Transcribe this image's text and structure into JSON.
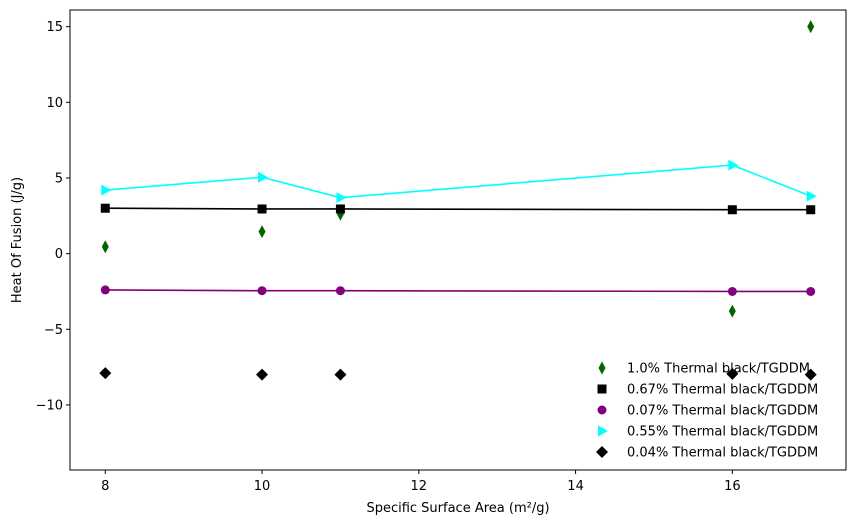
{
  "chart_data": {
    "type": "scatter",
    "title": "",
    "xlabel": "Specific Surface Area (m²/g)",
    "ylabel": "Heat Of Fusion (J/g)",
    "xlim": [
      7.55,
      17.45
    ],
    "ylim": [
      -14.3,
      16.1
    ],
    "xticks": [
      8,
      10,
      12,
      14,
      16
    ],
    "yticks": [
      -10,
      -5,
      0,
      5,
      10,
      15
    ],
    "grid": false,
    "legend_position": "lower-right",
    "series": [
      {
        "name": "1.0% Thermal black/TGDDM",
        "color": "#006400",
        "marker": "thin-diamond",
        "line": false,
        "x": [
          8,
          10,
          11,
          16,
          17
        ],
        "y": [
          0.45,
          1.45,
          2.6,
          -3.8,
          15.0
        ]
      },
      {
        "name": "0.67% Thermal black/TGDDM",
        "color": "#000000",
        "marker": "square",
        "line": true,
        "x": [
          8,
          10,
          11,
          16,
          17
        ],
        "y": [
          3.0,
          2.95,
          2.95,
          2.9,
          2.9
        ]
      },
      {
        "name": "0.07% Thermal black/TGDDM",
        "color": "#800080",
        "marker": "circle",
        "line": true,
        "x": [
          8,
          10,
          11,
          16,
          17
        ],
        "y": [
          -2.4,
          -2.45,
          -2.45,
          -2.5,
          -2.5
        ]
      },
      {
        "name": "0.55% Thermal black/TGDDM",
        "color": "#00FFFF",
        "marker": "triangle-right",
        "line": true,
        "x": [
          8,
          10,
          11,
          16,
          17
        ],
        "y": [
          4.2,
          5.05,
          3.7,
          5.85,
          3.8
        ]
      },
      {
        "name": "0.04% Thermal black/TGDDM",
        "color": "#000000",
        "marker": "diamond",
        "line": false,
        "x": [
          8,
          10,
          11,
          16,
          17
        ],
        "y": [
          -7.9,
          -8.0,
          -8.0,
          -7.95,
          -8.0
        ]
      }
    ]
  }
}
